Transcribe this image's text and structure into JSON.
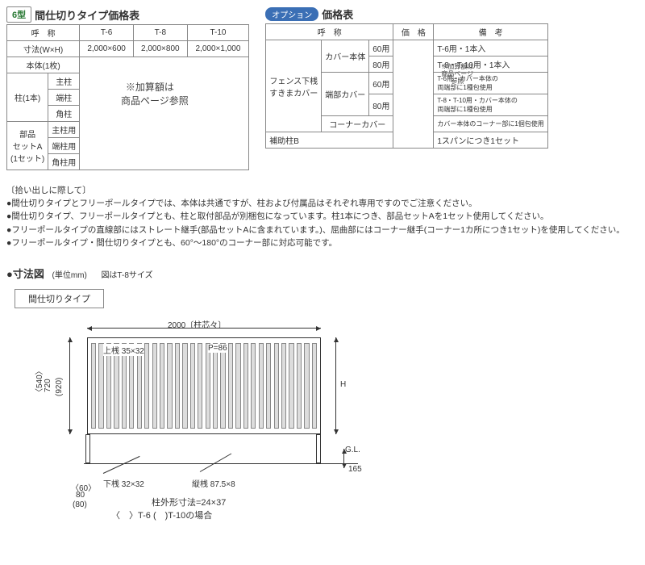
{
  "table1": {
    "badge": "6型",
    "title": "間仕切りタイプ価格表",
    "headers": [
      "呼　称",
      "T-6",
      "T-8",
      "T-10"
    ],
    "size_row": [
      "寸法(W×H)",
      "2,000×600",
      "2,000×800",
      "2,000×1,000"
    ],
    "rows": [
      {
        "g": "",
        "s": "本体(1枚)"
      },
      {
        "g": "柱(1本)",
        "s": "主柱"
      },
      {
        "g": "",
        "s": "端柱"
      },
      {
        "g": "",
        "s": "角柱"
      },
      {
        "g": "部品\nセットA\n(1セット)",
        "s": "主柱用"
      },
      {
        "g": "",
        "s": "端柱用"
      },
      {
        "g": "",
        "s": "角柱用"
      }
    ],
    "overlay": "※加算額は\n　商品ページ参照"
  },
  "table2": {
    "badge": "オプション",
    "title": "価格表",
    "cols": [
      "呼　称",
      "価　格",
      "備　考"
    ],
    "group1": "フェンス下桟\nすきまカバー",
    "rows1": [
      {
        "a": "カバー本体",
        "b": "60用",
        "r": "T-6用・1本入"
      },
      {
        "a": "",
        "b": "80用",
        "r": "T-8・T-10用・1本入"
      },
      {
        "a": "端部カバー",
        "b": "60用",
        "r": "T-6用・カバー本体の\n両端部に1種包使用"
      },
      {
        "a": "",
        "b": "80用",
        "r": "T-8・T-10用・カバー本体の\n両端部に1種包使用"
      },
      {
        "a": "コーナーカバー",
        "b": "",
        "r": "カバー本体のコーナー部に1個包使用"
      }
    ],
    "row2": {
      "a": "補助柱B",
      "r": "1スパンにつき1セット"
    },
    "overlay": "※加算額は\n商品ページ\n参照"
  },
  "bullets": {
    "lead": "〔拾い出しに際して〕",
    "items": [
      "●間仕切りタイプとフリーポールタイプでは、本体は共通ですが、柱および付属品はそれぞれ専用ですのでご注意ください。",
      "●間仕切りタイプ、フリーポールタイプとも、柱と取付部品が別梱包になっています。柱1本につき、部品セットAを1セット使用してください。",
      "●フリーポールタイプの直線部にはストレート継手(部品セットAに含まれています。)、屈曲部にはコーナー継手(コーナー1カ所につき1セット)を使用してください。",
      "●フリーポールタイプ・間仕切りタイプとも、60°～180°のコーナー部に対応可能です。"
    ]
  },
  "diagram": {
    "title": "●寸法図",
    "unit": "(単位mm)",
    "note": "図はT-8サイズ",
    "box_label": "間仕切りタイプ",
    "w": "2000〔柱芯々〕",
    "top_rail": "上桟 35×32",
    "pitch": "P=86",
    "bottom_rail": "下桟 32×32",
    "vert_rail": "縦桟 87.5×8",
    "h_label": "H",
    "h_vals": [
      "〈540〉",
      "720",
      "(920)"
    ],
    "post_depth": "165",
    "gl": "G.L.",
    "post_w": [
      "〈60〉",
      "80",
      "(80)"
    ],
    "post_dims": "柱外形寸法=24×37",
    "legend": "〈　〉T-6 (　)T-10の場合"
  }
}
